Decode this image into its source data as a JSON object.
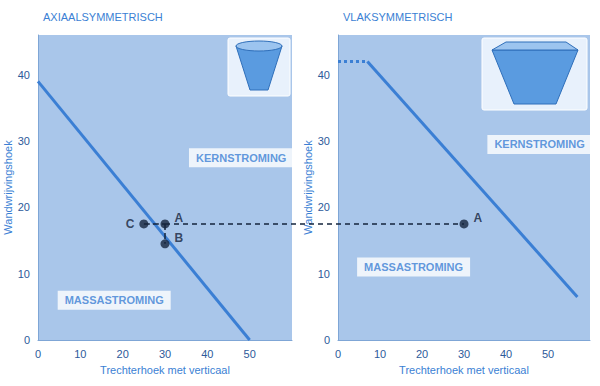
{
  "chart_data": [
    {
      "type": "line",
      "title": "AXIAALSYMMETRISCH",
      "x_label": "Trechterhoek met verticaal",
      "y_label": "Wandwrijvingshoek",
      "xlim": [
        0,
        60
      ],
      "xticks": [
        0,
        10,
        20,
        30,
        40,
        50
      ],
      "ylim": [
        0,
        46
      ],
      "yticks": [
        0,
        10,
        20,
        30,
        40
      ],
      "grid": false,
      "color": "#3b7fd4",
      "series": [
        {
          "x": [
            0,
            50
          ],
          "values": [
            39,
            0
          ],
          "line_style": "solid"
        }
      ],
      "points": [
        {
          "label": "A",
          "x": 30,
          "y": 17.5
        },
        {
          "label": "B",
          "x": 30,
          "y": 14.5
        },
        {
          "label": "C",
          "x": 25,
          "y": 17.5
        }
      ],
      "guides": [
        {
          "x": [
            25,
            30
          ],
          "values": [
            17.5,
            17.5
          ],
          "line_style": "dashed"
        },
        {
          "x": [
            30,
            30
          ],
          "values": [
            17.5,
            14.5
          ],
          "line_style": "dashed"
        }
      ],
      "annotations": [
        {
          "text": "KERNSTROMING",
          "x": 48,
          "y": 27.5
        },
        {
          "text": "MASSASTROMING",
          "x": 18,
          "y": 6
        }
      ]
    },
    {
      "type": "line",
      "title": "VLAKSYMMETRISCH",
      "x_label": "Trechterhoek met verticaal",
      "y_label": "Wandwrijvingshoek",
      "xlim": [
        0,
        60
      ],
      "xticks": [
        0,
        10,
        20,
        30,
        40,
        50
      ],
      "ylim": [
        0,
        46
      ],
      "yticks": [
        0,
        10,
        20,
        30,
        40
      ],
      "grid": false,
      "color": "#3b7fd4",
      "series": [
        {
          "x": [
            0,
            7
          ],
          "values": [
            42,
            42
          ],
          "line_style": "dotted"
        },
        {
          "x": [
            7,
            57
          ],
          "values": [
            42,
            6.5
          ],
          "line_style": "solid"
        }
      ],
      "points": [
        {
          "label": "A",
          "x": 30,
          "y": 17.5
        }
      ],
      "guides": [],
      "annotations": [
        {
          "text": "KERNSTROMING",
          "x": 48,
          "y": 29.5
        },
        {
          "text": "MASSASTROMING",
          "x": 18,
          "y": 11
        }
      ]
    }
  ],
  "connector": {
    "from": "A",
    "to": "A",
    "line_style": "dashed"
  }
}
